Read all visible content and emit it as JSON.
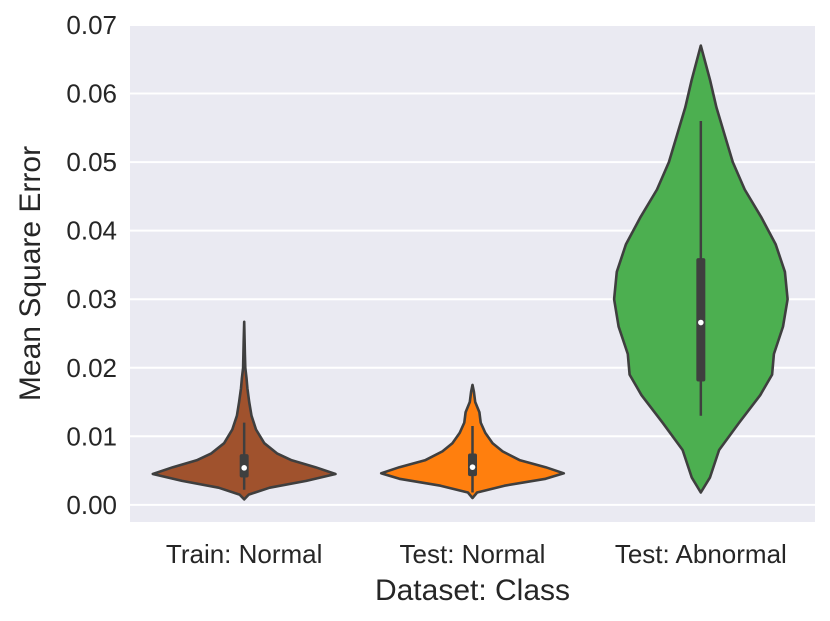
{
  "chart_data": {
    "type": "violin",
    "xlabel": "Dataset: Class",
    "ylabel": "Mean Square Error",
    "ylim": [
      -0.0025,
      0.07
    ],
    "yticks": [
      0.0,
      0.01,
      0.02,
      0.03,
      0.04,
      0.05,
      0.06,
      0.07
    ],
    "ytick_labels": [
      "0.00",
      "0.01",
      "0.02",
      "0.03",
      "0.04",
      "0.05",
      "0.06",
      "0.07"
    ],
    "grid": true,
    "categories": [
      "Train: Normal",
      "Test: Normal",
      "Test: Abnormal"
    ],
    "colors": [
      "#a0522d",
      "#ff7f0e",
      "#4caf50"
    ],
    "background": "#eaeaf2",
    "violins": [
      {
        "label": "Train: Normal",
        "min": 0.0008,
        "max": 0.0267,
        "q1": 0.004,
        "median": 0.0054,
        "q3": 0.0074,
        "whisker_low": 0.0022,
        "whisker_high": 0.012,
        "profile": [
          [
            0.0008,
            0.0
          ],
          [
            0.0015,
            0.05
          ],
          [
            0.0025,
            0.28
          ],
          [
            0.0035,
            0.68
          ],
          [
            0.0045,
            1.0
          ],
          [
            0.0055,
            0.78
          ],
          [
            0.0065,
            0.52
          ],
          [
            0.0075,
            0.36
          ],
          [
            0.009,
            0.22
          ],
          [
            0.011,
            0.13
          ],
          [
            0.013,
            0.08
          ],
          [
            0.015,
            0.055
          ],
          [
            0.017,
            0.035
          ],
          [
            0.0185,
            0.025
          ],
          [
            0.02,
            0.012
          ],
          [
            0.022,
            0.008
          ],
          [
            0.024,
            0.005
          ],
          [
            0.0267,
            0.0
          ]
        ]
      },
      {
        "label": "Test: Normal",
        "min": 0.001,
        "max": 0.0175,
        "q1": 0.0042,
        "median": 0.0055,
        "q3": 0.0075,
        "whisker_low": 0.0018,
        "whisker_high": 0.0115,
        "profile": [
          [
            0.001,
            0.0
          ],
          [
            0.0018,
            0.05
          ],
          [
            0.0028,
            0.35
          ],
          [
            0.0038,
            0.8
          ],
          [
            0.0046,
            1.0
          ],
          [
            0.0055,
            0.8
          ],
          [
            0.0065,
            0.52
          ],
          [
            0.0078,
            0.33
          ],
          [
            0.009,
            0.22
          ],
          [
            0.0105,
            0.14
          ],
          [
            0.012,
            0.09
          ],
          [
            0.0135,
            0.075
          ],
          [
            0.015,
            0.03
          ],
          [
            0.0165,
            0.015
          ],
          [
            0.0175,
            0.0
          ]
        ]
      },
      {
        "label": "Test: Abnormal",
        "min": 0.0018,
        "max": 0.067,
        "q1": 0.018,
        "median": 0.0266,
        "q3": 0.036,
        "whisker_low": 0.013,
        "whisker_high": 0.056,
        "profile": [
          [
            0.0018,
            0.0
          ],
          [
            0.004,
            0.1
          ],
          [
            0.008,
            0.2
          ],
          [
            0.012,
            0.42
          ],
          [
            0.016,
            0.65
          ],
          [
            0.019,
            0.78
          ],
          [
            0.022,
            0.8
          ],
          [
            0.026,
            0.9
          ],
          [
            0.03,
            0.95
          ],
          [
            0.034,
            0.92
          ],
          [
            0.038,
            0.82
          ],
          [
            0.042,
            0.66
          ],
          [
            0.046,
            0.48
          ],
          [
            0.05,
            0.35
          ],
          [
            0.054,
            0.26
          ],
          [
            0.058,
            0.17
          ],
          [
            0.062,
            0.1
          ],
          [
            0.067,
            0.0
          ]
        ]
      }
    ]
  }
}
